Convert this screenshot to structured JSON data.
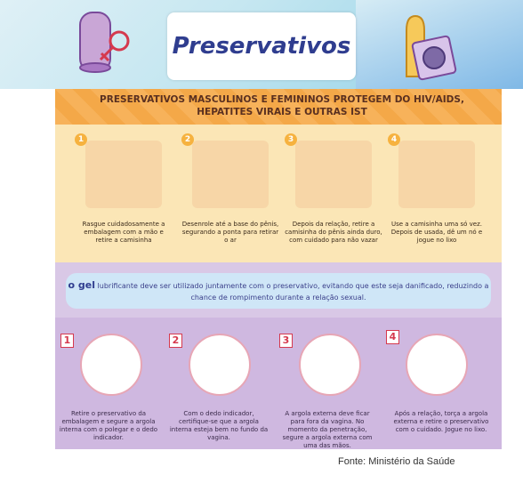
{
  "title": "Preservativos",
  "banner": "PRESERVATIVOS MASCULINOS E FEMININOS  PROTEGEM DO HIV/AIDS,  HEPATITES VIRAIS E OUTRAS IST",
  "male_steps": [
    {
      "num": "1",
      "text": "Rasgue cuidadosamente a embalagem com a mão e retire a camisinha"
    },
    {
      "num": "2",
      "text": "Desenrole até a base do pênis, segurando a ponta para retirar o ar"
    },
    {
      "num": "3",
      "text": "Depois da relação, retire a camisinha do pênis ainda duro, com cuidado para não vazar"
    },
    {
      "num": "4",
      "text": "Use a camisinha uma só vez. Depois de usada, dê um nó e jogue no lixo"
    }
  ],
  "gel": {
    "word": "o gel",
    "text": " lubrificante deve ser utilizado juntamente com o preservativo, evitando que este seja danificado, reduzindo a chance de rompimento durante a relação sexual."
  },
  "female_steps": [
    {
      "num": "1",
      "text": "Retire o preservativo da embalagem e segure a argola interna com o polegar e o dedo indicador."
    },
    {
      "num": "2",
      "text": "Com o dedo indicador, certifique-se que a argola interna esteja bem no fundo da vagina."
    },
    {
      "num": "3",
      "text": "A argola externa deve ficar para fora da vagina. No momento da penetração, segure a argola externa com uma das mãos."
    },
    {
      "num": "4",
      "text": "Após a relação, torça a argola externa e retire o preservativo com o cuidado. Jogue no lixo."
    }
  ],
  "source": "Fonte: Ministério da Saúde",
  "colors": {
    "title": "#2f3d8f",
    "top_panel": "#fbe6b6",
    "bottom_panel": "#cfb8e0",
    "accent": "#d5394e"
  },
  "icons": [
    "female-condom-icon",
    "female-symbol-icon",
    "male-condom-icon",
    "condom-package-icon"
  ]
}
